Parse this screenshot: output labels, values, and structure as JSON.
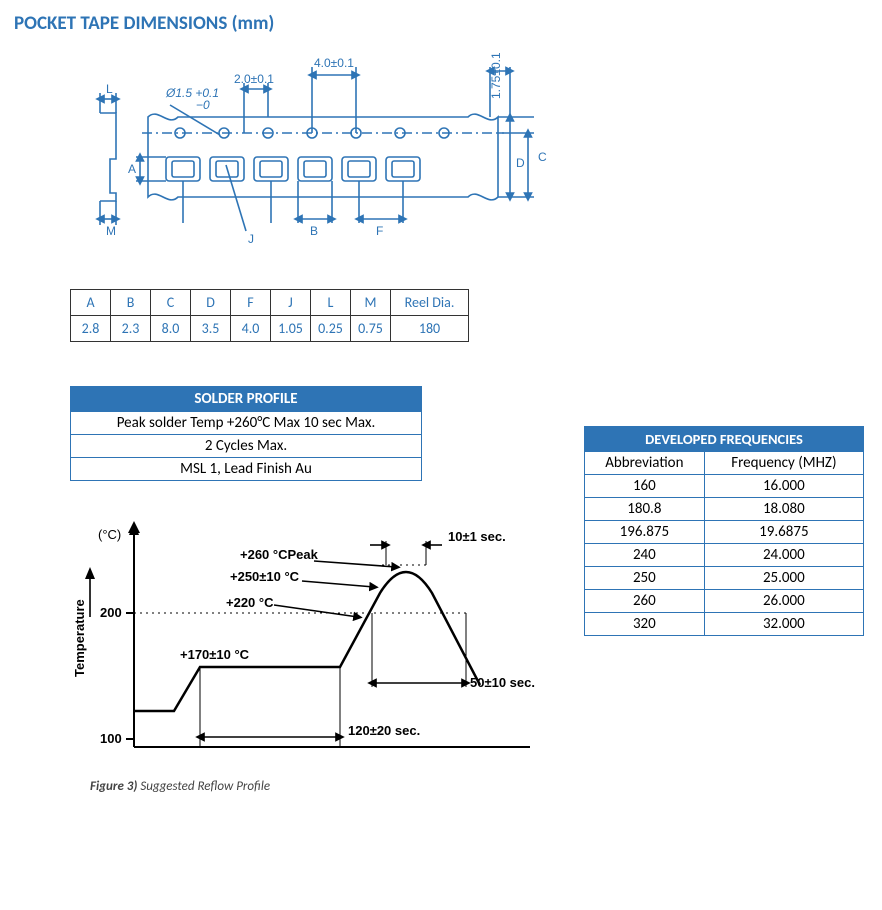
{
  "title": "POCKET TAPE DIMENSIONS (mm)",
  "colors": {
    "heading": "#2e74b5",
    "table_border": "#2e74b5",
    "tape_blue": "#2e74b5",
    "black": "#000000"
  },
  "tape_diagram": {
    "labels": {
      "L": "L",
      "M": "M",
      "A": "A",
      "B": "B",
      "F": "F",
      "J": "J",
      "C": "C",
      "D": "D",
      "diam": "Ø1.5 +0.1",
      "diam_sub": "−0",
      "spacing_left": "2.0±0.1",
      "spacing_right": "4.0±0.1",
      "edge": "1.75±0.1"
    },
    "table": {
      "headers": [
        "A",
        "B",
        "C",
        "D",
        "F",
        "J",
        "L",
        "M",
        "Reel Dia."
      ],
      "values": [
        "2.8",
        "2.3",
        "8.0",
        "3.5",
        "4.0",
        "1.05",
        "0.25",
        "0.75",
        "180"
      ]
    }
  },
  "solder_profile": {
    "title": "SOLDER PROFILE",
    "rows": [
      "Peak solder Temp +260°C Max 10 sec Max.",
      "2 Cycles Max.",
      "MSL 1, Lead Finish Au"
    ]
  },
  "frequencies": {
    "title": "DEVELOPED FREQUENCIES",
    "headers": [
      "Abbreviation",
      "Frequency (MHZ)"
    ],
    "rows": [
      [
        "160",
        "16.000"
      ],
      [
        "180.8",
        "18.080"
      ],
      [
        "196.875",
        "19.6875"
      ],
      [
        "240",
        "24.000"
      ],
      [
        "250",
        "25.000"
      ],
      [
        "260",
        "26.000"
      ],
      [
        "320",
        "32.000"
      ]
    ]
  },
  "reflow": {
    "axis_y_label": "Temperature",
    "axis_y_unit": "(°C)",
    "tick_200": "200",
    "tick_100": "100",
    "labels": {
      "peak": "+260 °CPeak",
      "t250": "+250±10 °C",
      "t220": "+220 °C",
      "t170": "+170±10 °C",
      "top_dur": "10±1 sec.",
      "lower_dur": "50±10 sec.",
      "ramp_dur": "120±20 sec."
    },
    "caption_bold": "Figure 3)",
    "caption_rest": " Suggested Reflow Profile"
  }
}
